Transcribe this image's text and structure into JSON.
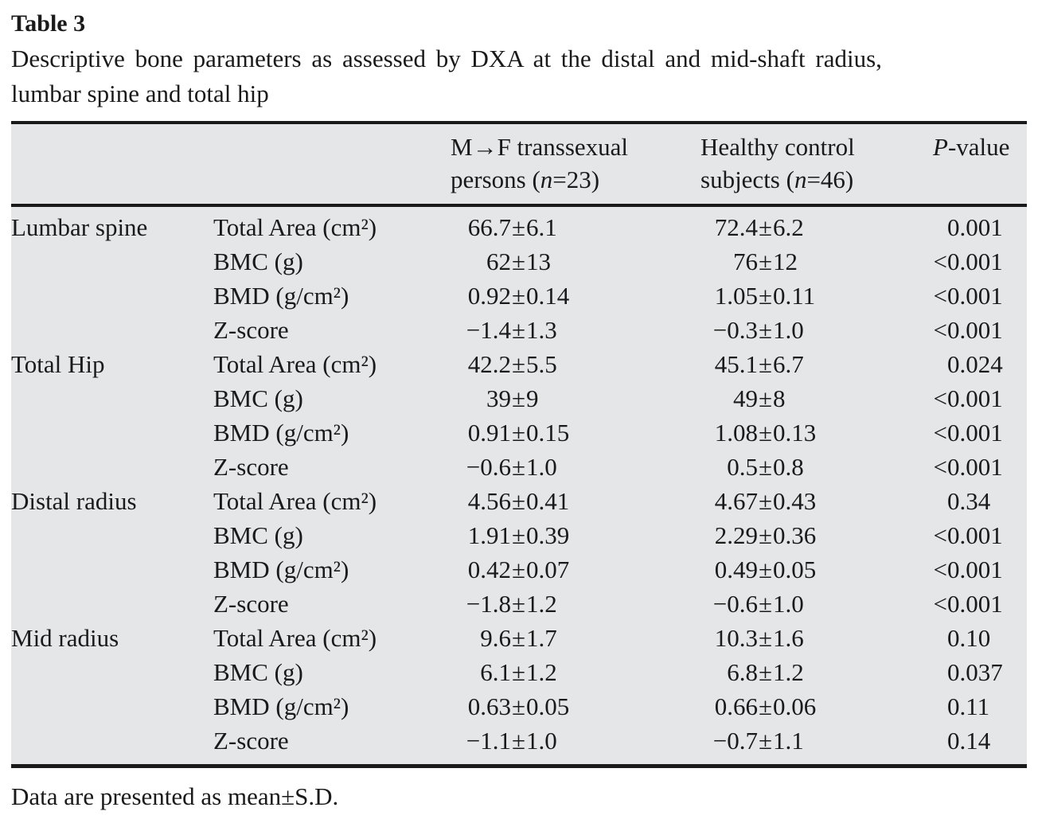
{
  "page": {
    "table_number": "Table 3",
    "caption_line1": "Descriptive bone parameters as assessed by DXA at the distal and mid-shaft radius,",
    "caption_line2": "lumbar spine and total hip",
    "footnote": "Data are presented as mean±S.D."
  },
  "table": {
    "plus_minus": "±",
    "header": {
      "group1": {
        "line1": "M→F transsexual",
        "l2pre": "persons (",
        "l2n": "n",
        "l2post": "=23)"
      },
      "group2": {
        "line1": "Healthy control",
        "l2pre": "subjects (",
        "l2n": "n",
        "l2post": "=46)"
      },
      "pvalue": {
        "italic": "P",
        "rest": "-value"
      }
    },
    "sections": [
      {
        "site": "Lumbar spine",
        "rows": [
          {
            "param": "Total Area (cm²)",
            "mf": {
              "mean": "66.7",
              "sd": "6.1"
            },
            "hc": {
              "mean": "72.4",
              "sd": "6.2"
            },
            "p": {
              "prefix": "",
              "value": "0.001"
            }
          },
          {
            "param": "BMC (g)",
            "mf": {
              "mean": "62",
              "sd": "13"
            },
            "hc": {
              "mean": "76",
              "sd": "12"
            },
            "p": {
              "prefix": "<",
              "value": "0.001"
            }
          },
          {
            "param": "BMD (g/cm²)",
            "mf": {
              "mean": "0.92",
              "sd": "0.14"
            },
            "hc": {
              "mean": "1.05",
              "sd": "0.11"
            },
            "p": {
              "prefix": "<",
              "value": "0.001"
            }
          },
          {
            "param": "Z-score",
            "mf": {
              "mean": "−1.4",
              "sd": "1.3"
            },
            "hc": {
              "mean": "−0.3",
              "sd": "1.0"
            },
            "p": {
              "prefix": "<",
              "value": "0.001"
            }
          }
        ]
      },
      {
        "site": "Total Hip",
        "rows": [
          {
            "param": "Total Area (cm²)",
            "mf": {
              "mean": "42.2",
              "sd": "5.5"
            },
            "hc": {
              "mean": "45.1",
              "sd": "6.7"
            },
            "p": {
              "prefix": "",
              "value": "0.024"
            }
          },
          {
            "param": "BMC (g)",
            "mf": {
              "mean": "39",
              "sd": "9"
            },
            "hc": {
              "mean": "49",
              "sd": "8"
            },
            "p": {
              "prefix": "<",
              "value": "0.001"
            }
          },
          {
            "param": "BMD (g/cm²)",
            "mf": {
              "mean": "0.91",
              "sd": "0.15"
            },
            "hc": {
              "mean": "1.08",
              "sd": "0.13"
            },
            "p": {
              "prefix": "<",
              "value": "0.001"
            }
          },
          {
            "param": "Z-score",
            "mf": {
              "mean": "−0.6",
              "sd": "1.0"
            },
            "hc": {
              "mean": "0.5",
              "sd": "0.8"
            },
            "p": {
              "prefix": "<",
              "value": "0.001"
            }
          }
        ]
      },
      {
        "site": "Distal radius",
        "rows": [
          {
            "param": "Total Area (cm²)",
            "mf": {
              "mean": "4.56",
              "sd": "0.41"
            },
            "hc": {
              "mean": "4.67",
              "sd": "0.43"
            },
            "p": {
              "prefix": "",
              "value": "0.34"
            }
          },
          {
            "param": "BMC (g)",
            "mf": {
              "mean": "1.91",
              "sd": "0.39"
            },
            "hc": {
              "mean": "2.29",
              "sd": "0.36"
            },
            "p": {
              "prefix": "<",
              "value": "0.001"
            }
          },
          {
            "param": "BMD (g/cm²)",
            "mf": {
              "mean": "0.42",
              "sd": "0.07"
            },
            "hc": {
              "mean": "0.49",
              "sd": "0.05"
            },
            "p": {
              "prefix": "<",
              "value": "0.001"
            }
          },
          {
            "param": "Z-score",
            "mf": {
              "mean": "−1.8",
              "sd": "1.2"
            },
            "hc": {
              "mean": "−0.6",
              "sd": "1.0"
            },
            "p": {
              "prefix": "<",
              "value": "0.001"
            }
          }
        ]
      },
      {
        "site": "Mid radius",
        "rows": [
          {
            "param": "Total Area (cm²)",
            "mf": {
              "mean": "9.6",
              "sd": "1.7"
            },
            "hc": {
              "mean": "10.3",
              "sd": "1.6"
            },
            "p": {
              "prefix": "",
              "value": "0.10"
            }
          },
          {
            "param": "BMC (g)",
            "mf": {
              "mean": "6.1",
              "sd": "1.2"
            },
            "hc": {
              "mean": "6.8",
              "sd": "1.2"
            },
            "p": {
              "prefix": "",
              "value": "0.037"
            }
          },
          {
            "param": "BMD (g/cm²)",
            "mf": {
              "mean": "0.63",
              "sd": "0.05"
            },
            "hc": {
              "mean": "0.66",
              "sd": "0.06"
            },
            "p": {
              "prefix": "",
              "value": "0.11"
            }
          },
          {
            "param": "Z-score",
            "mf": {
              "mean": "−1.1",
              "sd": "1.0"
            },
            "hc": {
              "mean": "−0.7",
              "sd": "1.1"
            },
            "p": {
              "prefix": "",
              "value": "0.14"
            }
          }
        ]
      }
    ]
  }
}
